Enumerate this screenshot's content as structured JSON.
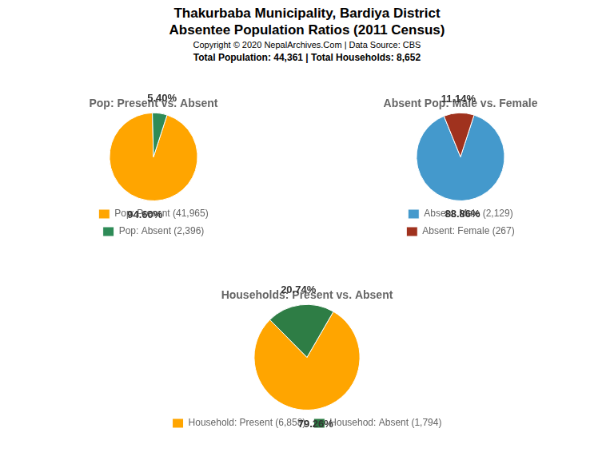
{
  "title": [
    "Thakurbaba Municipality, Bardiya District",
    "Absentee Population Ratios (2011 Census)"
  ],
  "subtitle": [
    "Copyright © 2020 NepalArchives.Com | Data Source: CBS",
    "Total Population: 44,361 | Total Households: 8,652"
  ],
  "chart_data": [
    {
      "type": "pie",
      "title": "Pop: Present vs. Absent",
      "categories": [
        "Pop: Present (41,965)",
        "Pop: Absent (2,396)"
      ],
      "values": [
        94.6,
        5.4
      ],
      "value_labels": [
        "94.60%",
        "5.40%"
      ],
      "colors": [
        "#FFA500",
        "#2E8B57"
      ],
      "data_labels": true,
      "legend": "bottom"
    },
    {
      "type": "pie",
      "title": "Absent Pop: Male vs. Female",
      "categories": [
        "Absent: Male (2,129)",
        "Absent: Female (267)"
      ],
      "values": [
        88.86,
        11.14
      ],
      "value_labels": [
        "88.86%",
        "11.14%"
      ],
      "colors": [
        "#4499CC",
        "#A0321E"
      ],
      "data_labels": true,
      "legend": "bottom"
    },
    {
      "type": "pie",
      "title": "Households: Present vs. Absent",
      "categories": [
        "Household: Present (6,858)",
        "Househod: Absent (1,794)"
      ],
      "values": [
        79.26,
        20.74
      ],
      "value_labels": [
        "79.26%",
        "20.74%"
      ],
      "colors": [
        "#FFA500",
        "#2E7D45"
      ],
      "data_labels": true,
      "legend": "bottom"
    }
  ]
}
